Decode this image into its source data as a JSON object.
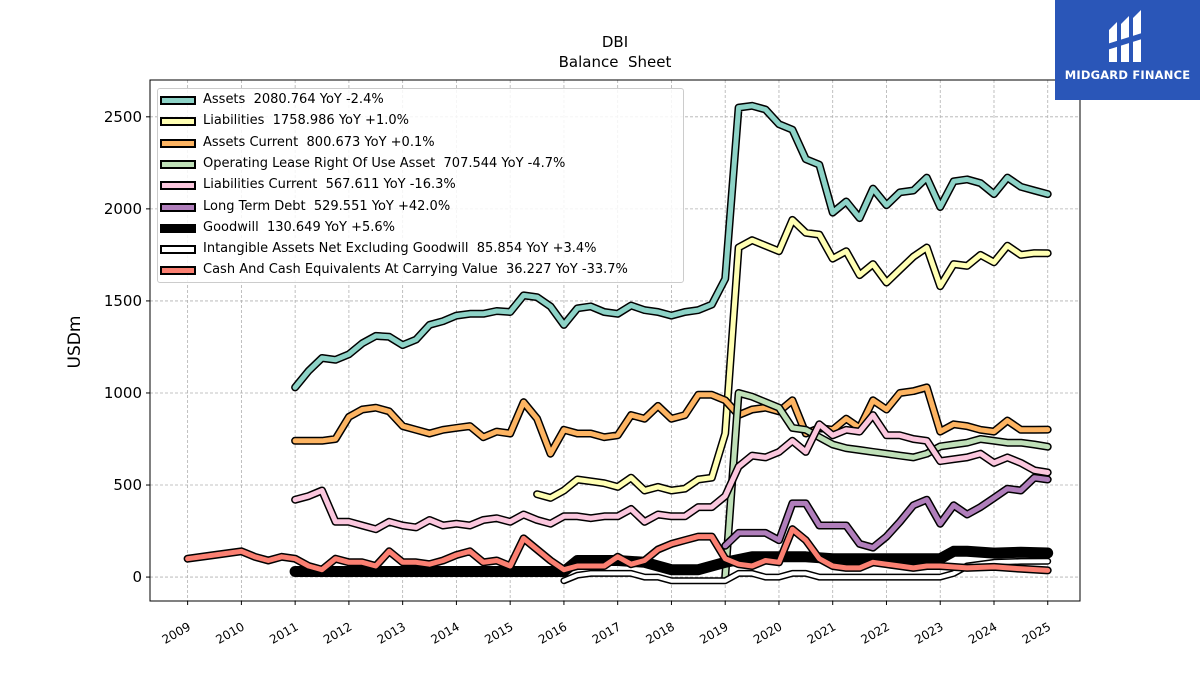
{
  "chart_data": {
    "type": "line",
    "title": "DBI",
    "subtitle": "Balance  Sheet",
    "ylabel": "USDm",
    "xlabel": "",
    "xlim": [
      2008.3,
      2025.6
    ],
    "ylim": [
      -130,
      2700
    ],
    "yticks": [
      0,
      500,
      1000,
      1500,
      2000,
      2500
    ],
    "xticks": [
      "2009",
      "2010",
      "2011",
      "2012",
      "2013",
      "2014",
      "2015",
      "2016",
      "2017",
      "2018",
      "2019",
      "2020",
      "2021",
      "2022",
      "2023",
      "2024",
      "2025"
    ],
    "grid": true,
    "legend_position": "top-left",
    "series": [
      {
        "name": "Assets  2080.764 YoY -2.4%",
        "color": "#8dd3c7",
        "width": 5,
        "x": [
          2011.0,
          2011.25,
          2011.5,
          2011.75,
          2012.0,
          2012.25,
          2012.5,
          2012.75,
          2013.0,
          2013.25,
          2013.5,
          2013.75,
          2014.0,
          2014.25,
          2014.5,
          2014.75,
          2015.0,
          2015.25,
          2015.5,
          2015.75,
          2016.0,
          2016.25,
          2016.5,
          2016.75,
          2017.0,
          2017.25,
          2017.5,
          2017.75,
          2018.0,
          2018.25,
          2018.5,
          2018.75,
          2019.0,
          2019.25,
          2019.5,
          2019.75,
          2020.0,
          2020.25,
          2020.5,
          2020.75,
          2021.0,
          2021.25,
          2021.5,
          2021.75,
          2022.0,
          2022.25,
          2022.5,
          2022.75,
          2023.0,
          2023.25,
          2023.5,
          2023.75,
          2024.0,
          2024.25,
          2024.5,
          2024.75,
          2025.0
        ],
        "y": [
          1030,
          1120,
          1190,
          1180,
          1210,
          1270,
          1310,
          1305,
          1260,
          1290,
          1370,
          1390,
          1420,
          1430,
          1430,
          1445,
          1440,
          1530,
          1520,
          1470,
          1370,
          1460,
          1470,
          1440,
          1430,
          1475,
          1450,
          1440,
          1420,
          1440,
          1450,
          1480,
          1620,
          2550,
          2560,
          2540,
          2460,
          2430,
          2270,
          2240,
          1980,
          2040,
          1950,
          2110,
          2020,
          2090,
          2100,
          2170,
          2010,
          2150,
          2160,
          2140,
          2080,
          2170,
          2120,
          2100,
          2080
        ]
      },
      {
        "name": "Liabilities  1758.986 YoY +1.0%",
        "color": "#ffffb3",
        "width": 5,
        "x": [
          2015.5,
          2015.75,
          2016.0,
          2016.25,
          2016.5,
          2016.75,
          2017.0,
          2017.25,
          2017.5,
          2017.75,
          2018.0,
          2018.25,
          2018.5,
          2018.75,
          2019.0,
          2019.25,
          2019.5,
          2019.75,
          2020.0,
          2020.25,
          2020.5,
          2020.75,
          2021.0,
          2021.25,
          2021.5,
          2021.75,
          2022.0,
          2022.25,
          2022.5,
          2022.75,
          2023.0,
          2023.25,
          2023.5,
          2023.75,
          2024.0,
          2024.25,
          2024.5,
          2024.75,
          2025.0
        ],
        "y": [
          450,
          430,
          470,
          530,
          520,
          510,
          490,
          540,
          470,
          490,
          470,
          480,
          530,
          540,
          780,
          1790,
          1830,
          1800,
          1770,
          1940,
          1870,
          1860,
          1730,
          1770,
          1640,
          1700,
          1600,
          1670,
          1740,
          1790,
          1580,
          1700,
          1690,
          1750,
          1710,
          1800,
          1750,
          1760,
          1759
        ]
      },
      {
        "name": "Assets Current  800.673 YoY +0.1%",
        "color": "#fdb462",
        "width": 5,
        "x": [
          2011.0,
          2011.25,
          2011.5,
          2011.75,
          2012.0,
          2012.25,
          2012.5,
          2012.75,
          2013.0,
          2013.25,
          2013.5,
          2013.75,
          2014.0,
          2014.25,
          2014.5,
          2014.75,
          2015.0,
          2015.25,
          2015.5,
          2015.75,
          2016.0,
          2016.25,
          2016.5,
          2016.75,
          2017.0,
          2017.25,
          2017.5,
          2017.75,
          2018.0,
          2018.25,
          2018.5,
          2018.75,
          2019.0,
          2019.25,
          2019.5,
          2019.75,
          2020.0,
          2020.25,
          2020.5,
          2020.75,
          2021.0,
          2021.25,
          2021.5,
          2021.75,
          2022.0,
          2022.25,
          2022.5,
          2022.75,
          2023.0,
          2023.25,
          2023.5,
          2023.75,
          2024.0,
          2024.25,
          2024.5,
          2024.75,
          2025.0
        ],
        "y": [
          740,
          740,
          740,
          750,
          870,
          910,
          920,
          900,
          820,
          800,
          780,
          800,
          810,
          820,
          760,
          790,
          780,
          950,
          860,
          670,
          800,
          780,
          780,
          760,
          770,
          880,
          860,
          930,
          860,
          880,
          990,
          990,
          960,
          880,
          910,
          920,
          900,
          960,
          780,
          810,
          800,
          860,
          810,
          960,
          910,
          1000,
          1010,
          1030,
          790,
          830,
          820,
          800,
          790,
          850,
          800,
          800,
          801
        ]
      },
      {
        "name": "Operating Lease Right Of Use Asset  707.544 YoY -4.7%",
        "color": "#bfe0b8",
        "width": 5,
        "x": [
          2019.0,
          2019.25,
          2019.5,
          2019.75,
          2020.0,
          2020.25,
          2020.5,
          2020.75,
          2021.0,
          2021.25,
          2021.5,
          2021.75,
          2022.0,
          2022.25,
          2022.5,
          2022.75,
          2023.0,
          2023.25,
          2023.5,
          2023.75,
          2024.0,
          2024.25,
          2024.5,
          2024.75,
          2025.0
        ],
        "y": [
          0,
          1000,
          980,
          950,
          920,
          810,
          800,
          760,
          720,
          700,
          690,
          680,
          670,
          660,
          650,
          670,
          710,
          720,
          730,
          750,
          740,
          730,
          730,
          720,
          708
        ]
      },
      {
        "name": "Liabilities Current  567.611 YoY -16.3%",
        "color": "#fbc7de",
        "width": 5,
        "x": [
          2011.0,
          2011.25,
          2011.5,
          2011.75,
          2012.0,
          2012.25,
          2012.5,
          2012.75,
          2013.0,
          2013.25,
          2013.5,
          2013.75,
          2014.0,
          2014.25,
          2014.5,
          2014.75,
          2015.0,
          2015.25,
          2015.5,
          2015.75,
          2016.0,
          2016.25,
          2016.5,
          2016.75,
          2017.0,
          2017.25,
          2017.5,
          2017.75,
          2018.0,
          2018.25,
          2018.5,
          2018.75,
          2019.0,
          2019.25,
          2019.5,
          2019.75,
          2020.0,
          2020.25,
          2020.5,
          2020.75,
          2021.0,
          2021.25,
          2021.5,
          2021.75,
          2022.0,
          2022.25,
          2022.5,
          2022.75,
          2023.0,
          2023.25,
          2023.5,
          2023.75,
          2024.0,
          2024.25,
          2024.5,
          2024.75,
          2025.0
        ],
        "y": [
          420,
          440,
          470,
          300,
          300,
          280,
          260,
          300,
          280,
          270,
          310,
          280,
          290,
          280,
          310,
          320,
          300,
          340,
          310,
          290,
          330,
          330,
          320,
          330,
          330,
          370,
          300,
          340,
          330,
          330,
          380,
          380,
          440,
          600,
          660,
          650,
          680,
          740,
          680,
          830,
          770,
          800,
          790,
          880,
          770,
          770,
          750,
          740,
          630,
          640,
          650,
          670,
          620,
          650,
          620,
          580,
          568
        ]
      },
      {
        "name": "Long Term Debt  529.551 YoY +42.0%",
        "color": "#b07ebb",
        "width": 5,
        "x": [
          2019.0,
          2019.25,
          2019.5,
          2019.75,
          2020.0,
          2020.25,
          2020.5,
          2020.75,
          2021.0,
          2021.25,
          2021.5,
          2021.75,
          2022.0,
          2022.25,
          2022.5,
          2022.75,
          2023.0,
          2023.25,
          2023.5,
          2023.75,
          2024.0,
          2024.25,
          2024.5,
          2024.75,
          2025.0
        ],
        "y": [
          170,
          240,
          240,
          240,
          200,
          400,
          400,
          280,
          280,
          280,
          180,
          160,
          220,
          300,
          390,
          420,
          290,
          390,
          340,
          380,
          430,
          480,
          470,
          540,
          530
        ]
      },
      {
        "name": "Goodwill  130.649 YoY +5.6%",
        "color": "#000000",
        "width": 8,
        "x": [
          2011.0,
          2011.5,
          2012.0,
          2012.5,
          2013.0,
          2013.5,
          2014.0,
          2014.5,
          2015.0,
          2015.5,
          2016.0,
          2016.25,
          2016.5,
          2017.0,
          2017.5,
          2018.0,
          2018.5,
          2019.0,
          2019.5,
          2020.0,
          2020.5,
          2021.0,
          2021.5,
          2022.0,
          2022.5,
          2023.0,
          2023.25,
          2023.5,
          2024.0,
          2024.5,
          2025.0
        ],
        "y": [
          30,
          30,
          30,
          30,
          30,
          30,
          30,
          30,
          30,
          30,
          30,
          90,
          90,
          90,
          80,
          40,
          40,
          80,
          110,
          110,
          110,
          100,
          100,
          100,
          100,
          100,
          140,
          140,
          130,
          135,
          131
        ]
      },
      {
        "name": "Intangible Assets Net Excluding Goodwill  85.854 YoY +3.4%",
        "color": "#ffffff",
        "width": 4,
        "x": [
          2016.0,
          2016.25,
          2016.5,
          2016.75,
          2017.0,
          2017.25,
          2017.5,
          2017.75,
          2018.0,
          2018.25,
          2018.5,
          2018.75,
          2019.0,
          2019.25,
          2019.5,
          2019.75,
          2020.0,
          2020.25,
          2020.5,
          2020.75,
          2021.0,
          2021.5,
          2022.0,
          2022.5,
          2023.0,
          2023.25,
          2023.5,
          2024.0,
          2024.5,
          2025.0
        ],
        "y": [
          -20,
          10,
          20,
          20,
          20,
          20,
          0,
          0,
          -20,
          -20,
          -20,
          -20,
          -20,
          20,
          20,
          0,
          0,
          20,
          20,
          0,
          0,
          0,
          0,
          0,
          0,
          20,
          60,
          80,
          85,
          86
        ]
      },
      {
        "name": "Cash And Cash Equivalents At Carrying Value  36.227 YoY -33.7%",
        "color": "#fb8072",
        "width": 5,
        "x": [
          2009.0,
          2009.5,
          2010.0,
          2010.25,
          2010.5,
          2010.75,
          2011.0,
          2011.25,
          2011.5,
          2011.75,
          2012.0,
          2012.25,
          2012.5,
          2012.75,
          2013.0,
          2013.25,
          2013.5,
          2013.75,
          2014.0,
          2014.25,
          2014.5,
          2014.75,
          2015.0,
          2015.25,
          2015.5,
          2015.75,
          2016.0,
          2016.25,
          2016.5,
          2016.75,
          2017.0,
          2017.25,
          2017.5,
          2017.75,
          2018.0,
          2018.25,
          2018.5,
          2018.75,
          2019.0,
          2019.25,
          2019.5,
          2019.75,
          2020.0,
          2020.25,
          2020.5,
          2020.75,
          2021.0,
          2021.25,
          2021.5,
          2021.75,
          2022.0,
          2022.25,
          2022.5,
          2022.75,
          2023.0,
          2023.5,
          2024.0,
          2024.5,
          2025.0
        ],
        "y": [
          100,
          120,
          140,
          110,
          90,
          110,
          100,
          60,
          40,
          100,
          80,
          80,
          60,
          140,
          80,
          80,
          70,
          90,
          120,
          140,
          80,
          90,
          60,
          210,
          150,
          90,
          40,
          60,
          60,
          60,
          110,
          70,
          90,
          150,
          180,
          200,
          220,
          220,
          100,
          70,
          60,
          90,
          80,
          260,
          200,
          100,
          60,
          50,
          50,
          80,
          70,
          60,
          50,
          60,
          60,
          50,
          55,
          45,
          36
        ]
      }
    ]
  },
  "logo": {
    "text": "MIDGARD FINANCE",
    "icon": "midgard-logo-icon",
    "bg_color": "#2a56b8"
  }
}
